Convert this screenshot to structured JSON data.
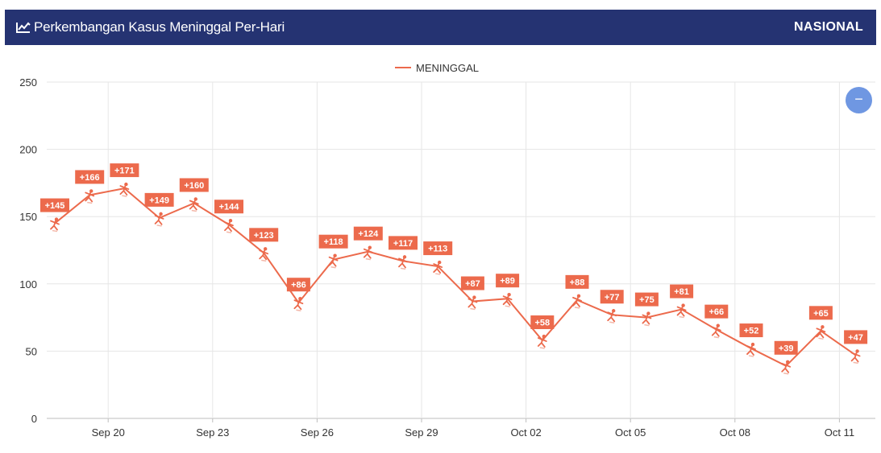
{
  "header": {
    "title": "Perkembangan Kasus Meninggal Per-Hari",
    "scope": "NASIONAL",
    "icon": "line-chart-icon"
  },
  "zoom_button": {
    "icon": "minus-icon",
    "symbol": "−"
  },
  "colors": {
    "header_bg": "#253372",
    "series": "#ec6a4c",
    "grid": "#e6e6e6",
    "zoom": "#6f97e2"
  },
  "chart_data": {
    "type": "line",
    "legend": {
      "entries": [
        "MENINGGAL"
      ],
      "placement": "top-center"
    },
    "x": [
      "Sep 19",
      "Sep 20",
      "Sep 21",
      "Sep 22",
      "Sep 23",
      "Sep 24",
      "Sep 25",
      "Sep 26",
      "Sep 27",
      "Sep 28",
      "Sep 29",
      "Sep 30",
      "Oct 01",
      "Oct 02",
      "Oct 03",
      "Oct 04",
      "Oct 05",
      "Oct 06",
      "Oct 07",
      "Oct 08",
      "Oct 09",
      "Oct 10",
      "Oct 11",
      "Oct 12"
    ],
    "x_ticks": [
      "Sep 20",
      "Sep 23",
      "Sep 26",
      "Sep 29",
      "Oct 02",
      "Oct 05",
      "Oct 08",
      "Oct 11"
    ],
    "series": [
      {
        "name": "MENINGGAL",
        "values": [
          145,
          166,
          171,
          149,
          160,
          144,
          123,
          86,
          118,
          124,
          117,
          113,
          87,
          89,
          58,
          88,
          77,
          75,
          81,
          66,
          52,
          39,
          65,
          47
        ],
        "labels": [
          "+145",
          "+166",
          "+171",
          "+149",
          "+160",
          "+144",
          "+123",
          "+86",
          "+118",
          "+124",
          "+117",
          "+113",
          "+87",
          "+89",
          "+58",
          "+88",
          "+77",
          "+75",
          "+81",
          "+66",
          "+52",
          "+39",
          "+65",
          "+47"
        ]
      }
    ],
    "y_ticks": [
      "0",
      "50",
      "100",
      "150",
      "200",
      "250"
    ],
    "ylim": [
      0,
      250
    ],
    "grid": true
  }
}
